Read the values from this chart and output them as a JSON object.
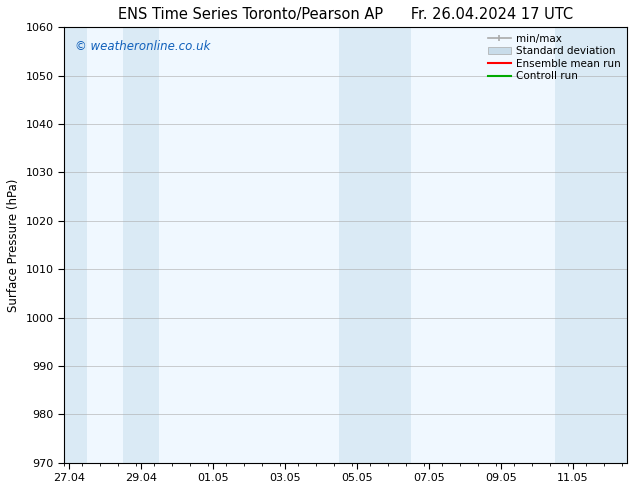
{
  "title_left": "ENS Time Series Toronto/Pearson AP",
  "title_right": "Fr. 26.04.2024 17 UTC",
  "ylabel": "Surface Pressure (hPa)",
  "ylim": [
    970,
    1060
  ],
  "yticks": [
    970,
    980,
    990,
    1000,
    1010,
    1020,
    1030,
    1040,
    1050,
    1060
  ],
  "xtick_labels": [
    "27.04",
    "29.04",
    "01.05",
    "03.05",
    "05.05",
    "07.05",
    "09.05",
    "11.05"
  ],
  "xtick_positions": [
    0,
    2,
    4,
    6,
    8,
    10,
    12,
    14
  ],
  "x_min": -0.15,
  "x_max": 15.5,
  "shaded_bands": [
    {
      "x_start": -0.15,
      "x_end": 0.5
    },
    {
      "x_start": 1.5,
      "x_end": 2.5
    },
    {
      "x_start": 7.5,
      "x_end": 9.5
    },
    {
      "x_start": 13.5,
      "x_end": 15.5
    }
  ],
  "band_color": "#daeaf5",
  "axes_bg_color": "#f0f8ff",
  "watermark_text": "© weatheronline.co.uk",
  "watermark_color": "#1060bb",
  "legend_labels": [
    "min/max",
    "Standard deviation",
    "Ensemble mean run",
    "Controll run"
  ],
  "minmax_color": "#aaaaaa",
  "std_color": "#c8dcea",
  "ensemble_color": "#ff0000",
  "control_color": "#00aa00",
  "background_color": "#ffffff",
  "axes_color": "#000000",
  "title_fontsize": 10.5,
  "label_fontsize": 8.5,
  "tick_fontsize": 8,
  "legend_fontsize": 7.5
}
